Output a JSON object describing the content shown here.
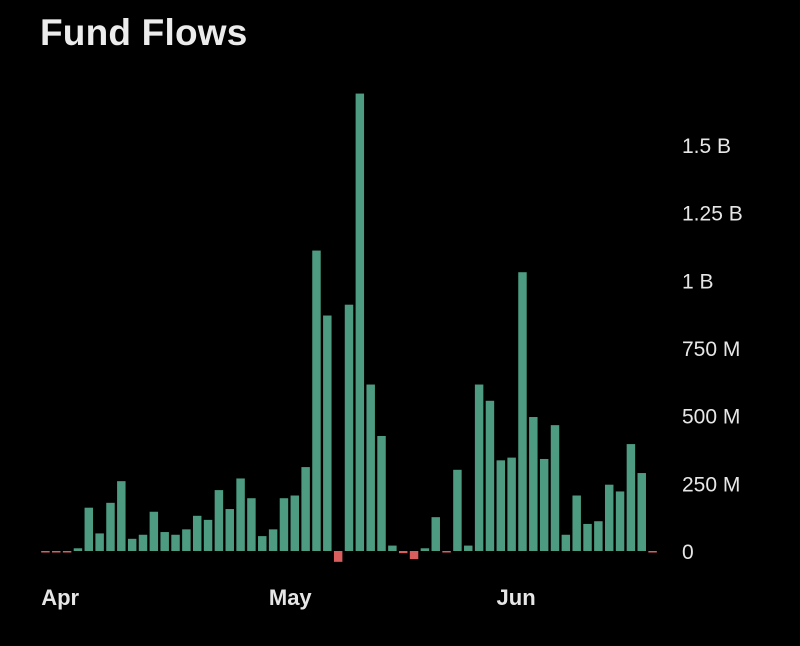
{
  "chart_data": {
    "type": "bar",
    "title": "Fund Flows",
    "xlabel": "",
    "ylabel": "",
    "ylim": [
      -30000000,
      1700000000
    ],
    "y_ticks": [
      {
        "value": 0,
        "label": "0"
      },
      {
        "value": 250000000,
        "label": "250 M"
      },
      {
        "value": 500000000,
        "label": "500 M"
      },
      {
        "value": 750000000,
        "label": "750 M"
      },
      {
        "value": 1000000000,
        "label": "1 B"
      },
      {
        "value": 1250000000,
        "label": "1.25 B"
      },
      {
        "value": 1500000000,
        "label": "1.5 B"
      }
    ],
    "x_ticks": [
      {
        "index": 0,
        "label": "Apr"
      },
      {
        "index": 21,
        "label": "May"
      },
      {
        "index": 42,
        "label": "Jun"
      }
    ],
    "y_axis_position": "right",
    "grid": false,
    "legend": "none",
    "colors": {
      "positive": "#4d9c82",
      "negative": "#d95f5f",
      "background": "#000000",
      "text": "#e6e6e6"
    },
    "values": [
      -3000000,
      -5000000,
      -5000000,
      10000000,
      160000000,
      65000000,
      178000000,
      258000000,
      45000000,
      60000000,
      145000000,
      70000000,
      60000000,
      80000000,
      130000000,
      115000000,
      225000000,
      155000000,
      268000000,
      195000000,
      55000000,
      80000000,
      195000000,
      205000000,
      310000000,
      1110000000,
      870000000,
      -40000000,
      910000000,
      1690000000,
      615000000,
      425000000,
      20000000,
      -8000000,
      -30000000,
      10000000,
      125000000,
      -5000000,
      300000000,
      20000000,
      615000000,
      555000000,
      335000000,
      345000000,
      1030000000,
      495000000,
      340000000,
      465000000,
      60000000,
      205000000,
      100000000,
      110000000,
      245000000,
      220000000,
      395000000,
      288000000,
      -5000000
    ]
  }
}
